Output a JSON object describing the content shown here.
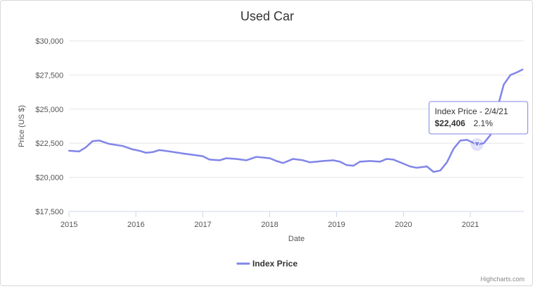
{
  "chart_data": {
    "type": "line",
    "title": "Used Car",
    "xlabel": "Date",
    "ylabel": "Price (US $)",
    "x_ticks": [
      "2015",
      "2016",
      "2017",
      "2018",
      "2019",
      "2020",
      "2021"
    ],
    "y_ticks": [
      "$17,500",
      "$20,000",
      "$22,500",
      "$25,000",
      "$27,500",
      "$30,000"
    ],
    "xlim": [
      2015.0,
      2021.8
    ],
    "ylim": [
      17500,
      30000
    ],
    "grid": "horizontal",
    "legend": "bottom-center",
    "series": [
      {
        "name": "Index Price",
        "color": "#8085e9",
        "x": [
          2015.0,
          2015.15,
          2015.25,
          2015.35,
          2015.45,
          2015.6,
          2015.8,
          2015.95,
          2016.05,
          2016.15,
          2016.25,
          2016.35,
          2016.5,
          2016.7,
          2016.85,
          2017.0,
          2017.1,
          2017.25,
          2017.35,
          2017.5,
          2017.65,
          2017.8,
          2017.9,
          2018.0,
          2018.1,
          2018.2,
          2018.35,
          2018.5,
          2018.6,
          2018.7,
          2018.8,
          2018.95,
          2019.05,
          2019.15,
          2019.25,
          2019.35,
          2019.5,
          2019.65,
          2019.75,
          2019.85,
          2020.0,
          2020.1,
          2020.2,
          2020.35,
          2020.45,
          2020.55,
          2020.65,
          2020.75,
          2020.85,
          2020.95,
          2021.1,
          2021.2,
          2021.3,
          2021.4,
          2021.5,
          2021.6,
          2021.7,
          2021.78
        ],
        "values": [
          21950,
          21900,
          22200,
          22650,
          22700,
          22450,
          22300,
          22050,
          21950,
          21800,
          21850,
          22000,
          21900,
          21750,
          21650,
          21550,
          21300,
          21250,
          21400,
          21350,
          21250,
          21500,
          21450,
          21400,
          21200,
          21050,
          21350,
          21250,
          21100,
          21150,
          21200,
          21250,
          21150,
          20900,
          20850,
          21150,
          21200,
          21150,
          21350,
          21300,
          21000,
          20800,
          20700,
          20800,
          20400,
          20500,
          21100,
          22100,
          22700,
          22750,
          22406,
          22500,
          23100,
          25000,
          26800,
          27500,
          27700,
          27900
        ]
      }
    ],
    "tooltip": {
      "label": "Index Price - 2/4/21",
      "price": "$22,406",
      "change": "2.1%",
      "x": 2021.1,
      "y": 22406
    },
    "credits": "Highcharts.com"
  }
}
